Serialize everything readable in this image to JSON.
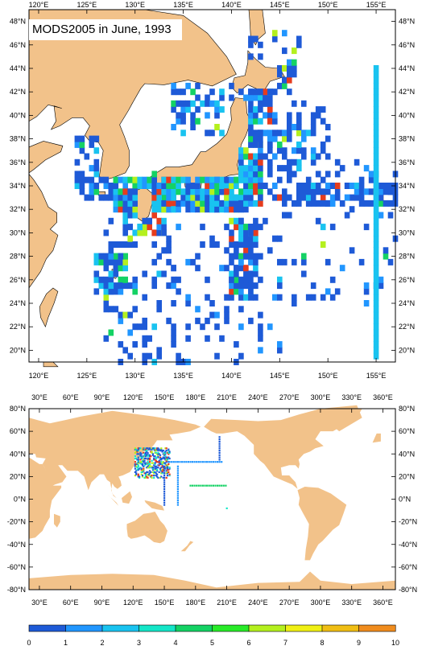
{
  "map_top": {
    "title": "MODS2005 in June, 1993",
    "lon_labels": [
      "120°E",
      "125°E",
      "130°E",
      "135°E",
      "140°E",
      "145°E",
      "150°E",
      "155°E"
    ],
    "lat_labels": [
      "20°N",
      "22°N",
      "24°N",
      "26°N",
      "28°N",
      "30°N",
      "32°N",
      "34°N",
      "36°N",
      "38°N",
      "40°N",
      "42°N",
      "44°N",
      "46°N",
      "48°N"
    ],
    "lon_range": [
      119,
      157
    ],
    "lat_range": [
      19,
      49
    ],
    "land_color": "#f2c28a",
    "ocean_color": "#ffffff"
  },
  "map_bottom": {
    "lon_labels": [
      "30°E",
      "60°E",
      "90°E",
      "120°E",
      "150°E",
      "180°E",
      "210°E",
      "240°E",
      "270°E",
      "300°E",
      "330°E",
      "360°E"
    ],
    "lat_labels": [
      "80°N",
      "60°N",
      "40°N",
      "20°N",
      "0°N",
      "-20°N",
      "-40°N",
      "-60°N",
      "-80°N"
    ],
    "lon_range": [
      20,
      372
    ],
    "lat_range": [
      -80,
      80
    ],
    "land_color": "#f2c28a"
  },
  "colorbar": {
    "labels": [
      "0",
      "1",
      "2",
      "3",
      "4",
      "5",
      "6",
      "7",
      "8",
      "9",
      "10"
    ],
    "colors": [
      "#1e5ad7",
      "#2196ff",
      "#19c3f0",
      "#14e6c8",
      "#14d264",
      "#28eb28",
      "#b4f01e",
      "#f0f014",
      "#f0be14",
      "#f08c1e",
      "#e63c1e"
    ]
  }
}
